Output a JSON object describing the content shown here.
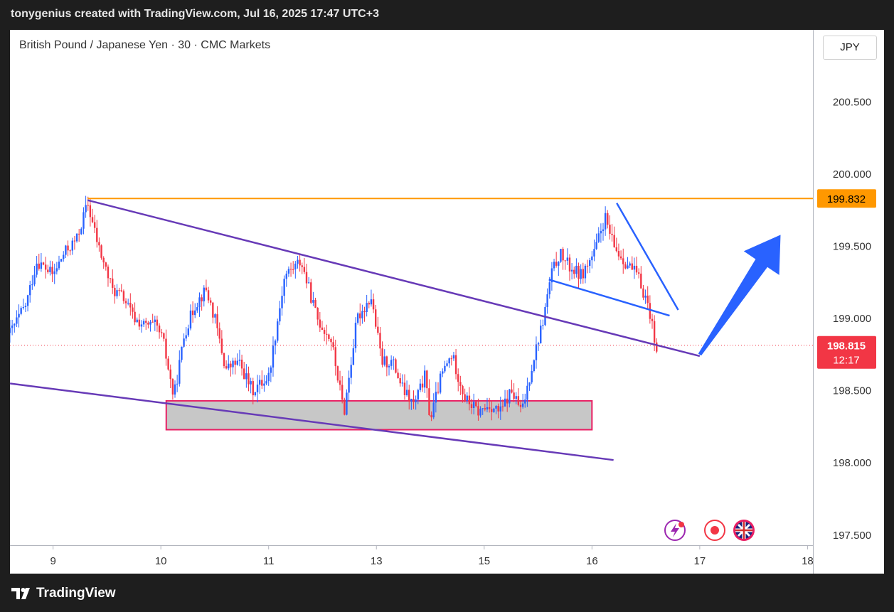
{
  "header": {
    "attribution": "tonygenius created with TradingView.com, Jul 16, 2025 17:47 UTC+3"
  },
  "symbol": {
    "title": "British Pound / Japanese Yen · 30 · CMC Markets"
  },
  "currency_button": {
    "label": "JPY"
  },
  "branding": {
    "label": "TradingView"
  },
  "colors": {
    "up": "#2962ff",
    "down": "#f23645",
    "resistance": "#ff9800",
    "channel": "#673ab7",
    "flag": "#2962ff",
    "support_zone_fill": "#c7c7c7",
    "support_zone_border": "#e91e63",
    "arrow": "#2962ff"
  },
  "chart_data": {
    "type": "candlestick",
    "title": "British Pound / Japanese Yen · 30 · CMC Markets",
    "ylim": [
      197.43,
      201.0
    ],
    "y_ticks": [
      "200.500",
      "200.000",
      "199.500",
      "199.000",
      "198.500",
      "198.000",
      "197.500"
    ],
    "x_ticks": [
      {
        "label": "9",
        "day": 9
      },
      {
        "label": "10",
        "day": 10
      },
      {
        "label": "11",
        "day": 11
      },
      {
        "label": "13",
        "day": 12
      },
      {
        "label": "15",
        "day": 13
      },
      {
        "label": "16",
        "day": 14
      },
      {
        "label": "17",
        "day": 15
      },
      {
        "label": "18",
        "day": 16
      }
    ],
    "x_range": [
      8.6,
      16.05
    ],
    "last_price": {
      "value": 198.815,
      "label": "198.815",
      "countdown": "12:17"
    },
    "resistance": {
      "value": 199.832,
      "label": "199.832",
      "from_day": 9.32
    },
    "price_path": [
      [
        8.6,
        198.9
      ],
      [
        8.75,
        199.1
      ],
      [
        8.85,
        199.4
      ],
      [
        9.0,
        199.3
      ],
      [
        9.1,
        199.45
      ],
      [
        9.22,
        199.55
      ],
      [
        9.32,
        199.8
      ],
      [
        9.42,
        199.5
      ],
      [
        9.55,
        199.2
      ],
      [
        9.65,
        199.15
      ],
      [
        9.75,
        199.0
      ],
      [
        9.85,
        198.95
      ],
      [
        9.95,
        198.95
      ],
      [
        10.02,
        198.85
      ],
      [
        10.12,
        198.45
      ],
      [
        10.22,
        198.9
      ],
      [
        10.32,
        199.1
      ],
      [
        10.42,
        199.2
      ],
      [
        10.5,
        199.0
      ],
      [
        10.6,
        198.65
      ],
      [
        10.72,
        198.7
      ],
      [
        10.85,
        198.5
      ],
      [
        11.0,
        198.6
      ],
      [
        11.15,
        199.3
      ],
      [
        11.3,
        199.4
      ],
      [
        11.45,
        199.0
      ],
      [
        11.58,
        198.85
      ],
      [
        11.7,
        198.35
      ],
      [
        11.82,
        199.0
      ],
      [
        11.95,
        199.15
      ],
      [
        12.05,
        198.7
      ],
      [
        12.15,
        198.7
      ],
      [
        12.25,
        198.5
      ],
      [
        12.35,
        198.4
      ],
      [
        12.45,
        198.6
      ],
      [
        12.5,
        198.3
      ],
      [
        12.6,
        198.6
      ],
      [
        12.7,
        198.75
      ],
      [
        12.82,
        198.45
      ],
      [
        12.95,
        198.35
      ],
      [
        13.05,
        198.4
      ],
      [
        13.15,
        198.35
      ],
      [
        13.25,
        198.5
      ],
      [
        13.35,
        198.35
      ],
      [
        13.45,
        198.7
      ],
      [
        13.55,
        199.0
      ],
      [
        13.62,
        199.3
      ],
      [
        13.7,
        199.45
      ],
      [
        13.8,
        199.35
      ],
      [
        13.9,
        199.3
      ],
      [
        14.02,
        199.45
      ],
      [
        14.12,
        199.7
      ],
      [
        14.2,
        199.5
      ],
      [
        14.3,
        199.4
      ],
      [
        14.42,
        199.3
      ],
      [
        14.52,
        199.1
      ],
      [
        14.6,
        198.8
      ]
    ],
    "support_zone": {
      "from_day": 10.05,
      "to_day": 14.0,
      "low": 198.23,
      "high": 198.43
    },
    "channel_upper": {
      "start": [
        9.32,
        199.82
      ],
      "end": [
        15.0,
        198.74
      ]
    },
    "channel_lower": {
      "start": [
        8.6,
        198.55
      ],
      "end": [
        14.2,
        198.02
      ]
    },
    "flag_upper": {
      "start": [
        14.23,
        199.8
      ],
      "end": [
        14.8,
        199.06
      ]
    },
    "flag_lower": {
      "start": [
        13.6,
        199.27
      ],
      "end": [
        14.72,
        199.02
      ]
    },
    "arrow": {
      "start": [
        15.0,
        198.75
      ],
      "end": [
        15.75,
        199.58
      ]
    }
  }
}
